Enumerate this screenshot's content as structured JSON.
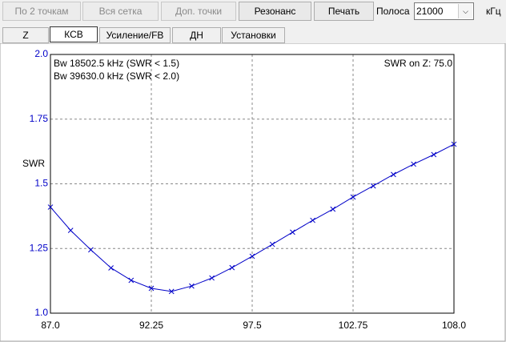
{
  "toolbar": {
    "buttons": [
      {
        "label": "По 2 точкам",
        "enabled": false
      },
      {
        "label": "Вся сетка",
        "enabled": false
      },
      {
        "label": "Доп. точки",
        "enabled": false
      },
      {
        "label": "Резонанс",
        "enabled": true
      },
      {
        "label": "Печать",
        "enabled": true
      }
    ],
    "band_label": "Полоса",
    "band_value": "21000",
    "band_unit": "кГц"
  },
  "tabs": {
    "labels": [
      "Z",
      "КСВ",
      "Усиление/FB",
      "ДН",
      "Установки"
    ],
    "selected": 1
  },
  "chart_data": {
    "type": "line",
    "ylabel": "SWR",
    "color": "#0000c8",
    "grid": true,
    "annotations": [
      "Bw 18502.5 kHz (SWR < 1.5)",
      "Bw 39630.0 kHz (SWR < 2.0)",
      "SWR on Z: 75.0"
    ],
    "x": [
      87.0,
      88.05,
      89.1,
      90.15,
      91.2,
      92.25,
      93.3,
      94.35,
      95.4,
      96.45,
      97.5,
      98.55,
      99.6,
      100.65,
      101.7,
      102.75,
      103.8,
      104.85,
      105.9,
      106.95,
      108.0
    ],
    "values": [
      1.41,
      1.32,
      1.245,
      1.175,
      1.127,
      1.096,
      1.084,
      1.105,
      1.136,
      1.176,
      1.22,
      1.266,
      1.313,
      1.359,
      1.402,
      1.449,
      1.492,
      1.536,
      1.576,
      1.613,
      1.653
    ],
    "xlim": [
      87,
      108
    ],
    "ylim": [
      1,
      2
    ],
    "xticks": [
      {
        "value": 87,
        "label": "87.0"
      },
      92.25,
      97.5,
      102.75,
      {
        "value": 108,
        "label": "108.0"
      }
    ],
    "yticks": [
      {
        "value": 1,
        "label": "1.0"
      },
      1.25,
      1.5,
      1.75,
      {
        "value": 2,
        "label": "2.0"
      }
    ]
  }
}
